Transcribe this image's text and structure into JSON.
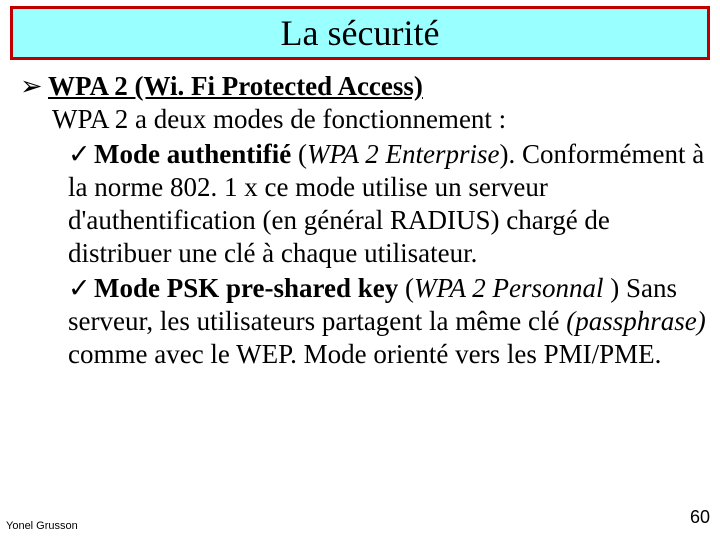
{
  "title": "La sécurité",
  "bullet_lvl1": "➢",
  "bullet_lvl2": "✓",
  "heading": "WPA 2 (Wi. Fi Protected Access)",
  "subheading": "WPA 2 a deux modes de fonctionnement :",
  "item1": {
    "lead": "Mode authentifié",
    "paren_open": " (",
    "paren_italic": "WPA 2 Enterprise",
    "paren_close": "). ",
    "body": "Conformément à la norme 802. 1 x ce mode utilise un serveur d'authentification (en général RADIUS) chargé de distribuer une clé à chaque utilisateur."
  },
  "item2": {
    "lead": "Mode PSK pre-shared key",
    "paren_open": " (",
    "paren_italic": "WPA 2 Personnal ",
    "paren_close": ") ",
    "line2a": "Sans serveur, les utilisateurs partagent la même clé ",
    "line2b_italic": "(passphrase)",
    "line2c": " comme avec le WEP. Mode orienté vers les PMI/PME."
  },
  "footer_author": "Yonel Grusson",
  "page_number": "60",
  "colors": {
    "title_bg": "#99ffff",
    "title_border": "#c00000",
    "text": "#000000",
    "page_bg": "#ffffff"
  }
}
